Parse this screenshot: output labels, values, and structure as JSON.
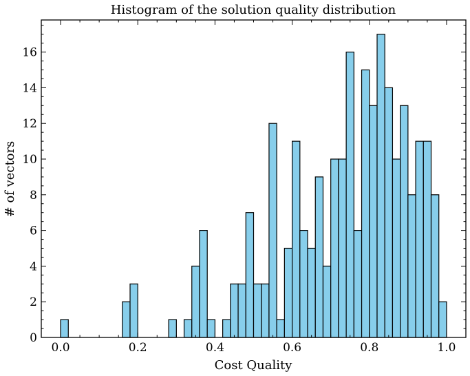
{
  "chart_data": {
    "type": "bar",
    "title": "Histogram of the solution quality distribution",
    "xlabel": "Cost Quality",
    "ylabel": "# of vectors",
    "xlim": [
      -0.05,
      1.05
    ],
    "ylim": [
      0,
      17.8
    ],
    "xticks": [
      0.0,
      0.2,
      0.4,
      0.6,
      0.8,
      1.0
    ],
    "xtick_labels": [
      "0.0",
      "0.2",
      "0.4",
      "0.6",
      "0.8",
      "1.0"
    ],
    "yticks": [
      0,
      2,
      4,
      6,
      8,
      10,
      12,
      14,
      16
    ],
    "ytick_labels": [
      "0",
      "2",
      "4",
      "6",
      "8",
      "10",
      "12",
      "14",
      "16"
    ],
    "bin_start": 0.0,
    "bin_width": 0.02,
    "values": [
      1,
      0,
      0,
      0,
      0,
      0,
      0,
      0,
      2,
      3,
      0,
      0,
      0,
      0,
      1,
      0,
      1,
      4,
      6,
      1,
      0,
      1,
      3,
      3,
      7,
      3,
      3,
      12,
      1,
      5,
      11,
      6,
      5,
      9,
      4,
      10,
      10,
      16,
      6,
      15,
      13,
      17,
      14,
      10,
      13,
      8,
      11,
      11,
      8,
      2
    ],
    "bar_color": "#87CEEB",
    "edge_color": "#000000",
    "grid": false,
    "legend": "none"
  }
}
